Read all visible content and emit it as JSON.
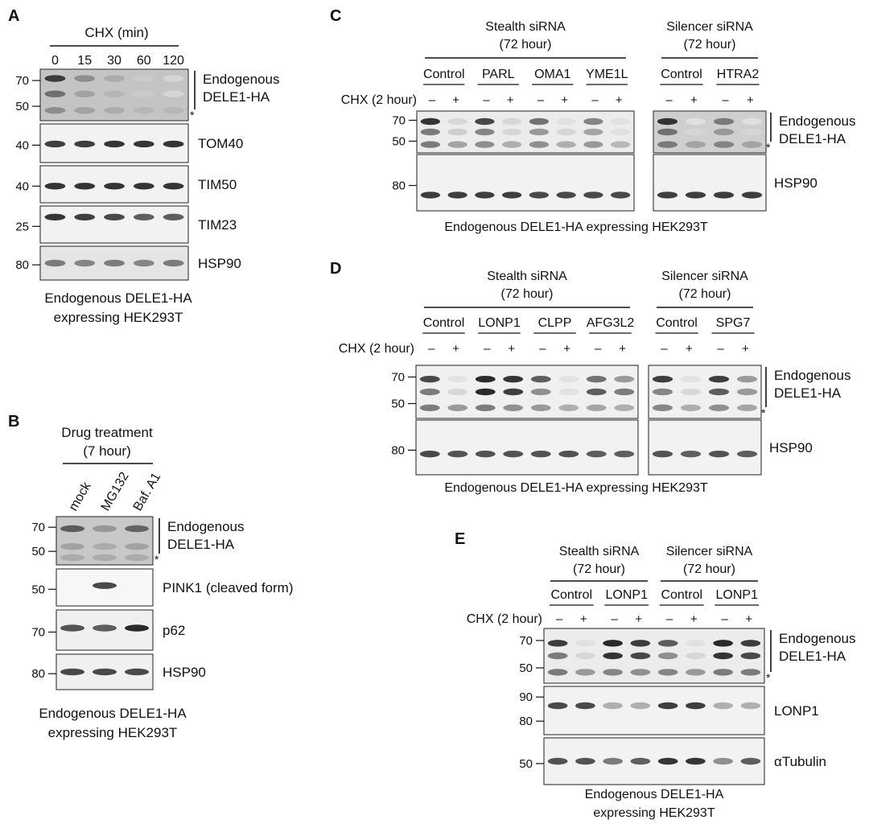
{
  "panels": [
    {
      "letter": "A",
      "treatment_header": "CHX (min)",
      "lane_labels": [
        "0",
        "15",
        "30",
        "60",
        "120"
      ],
      "blots": [
        {
          "mw": [
            "70",
            "50"
          ],
          "label": [
            "Endogenous",
            "DELE1-HA"
          ],
          "bracket": true,
          "asterisk": true,
          "bg": "#c4c4c4",
          "bands": [
            {
              "level": 0.18,
              "intensity": [
                0.85,
                0.45,
                0.3,
                0.15,
                0.1
              ]
            },
            {
              "level": 0.48,
              "intensity": [
                0.6,
                0.35,
                0.25,
                0.15,
                0.1
              ]
            },
            {
              "level": 0.8,
              "intensity": [
                0.45,
                0.35,
                0.3,
                0.25,
                0.25
              ]
            }
          ]
        },
        {
          "mw": [
            "40"
          ],
          "label": [
            "TOM40"
          ],
          "bracket": false,
          "asterisk": false,
          "bg": "#f2f2f2",
          "bands": [
            {
              "level": 0.52,
              "intensity": [
                0.85,
                0.85,
                0.9,
                0.9,
                0.9
              ]
            }
          ]
        },
        {
          "mw": [
            "40"
          ],
          "label": [
            "TIM50"
          ],
          "bracket": false,
          "asterisk": false,
          "bg": "#f2f2f2",
          "bands": [
            {
              "level": 0.55,
              "intensity": [
                0.9,
                0.9,
                0.9,
                0.9,
                0.9
              ]
            }
          ]
        },
        {
          "mw": [
            "25"
          ],
          "label": [
            "TIM23"
          ],
          "bracket": false,
          "asterisk": false,
          "bg": "#f2f2f2",
          "bands": [
            {
              "level": 0.3,
              "intensity": [
                0.9,
                0.85,
                0.8,
                0.7,
                0.7
              ]
            }
          ]
        },
        {
          "mw": [
            "80"
          ],
          "label": [
            "HSP90"
          ],
          "bracket": false,
          "asterisk": false,
          "bg": "#e5e5e5",
          "bands": [
            {
              "level": 0.5,
              "intensity": [
                0.55,
                0.5,
                0.55,
                0.5,
                0.55
              ]
            }
          ]
        }
      ],
      "caption": [
        "Endogenous DELE1-HA",
        "expressing HEK293T"
      ]
    },
    {
      "letter": "B",
      "treatment_header": [
        "Drug treatment",
        "(7 hour)"
      ],
      "lane_labels": [
        "mock",
        "MG132",
        "Baf. A1"
      ],
      "blots": [
        {
          "mw": [
            "70",
            "50"
          ],
          "label": [
            "Endogenous",
            "DELE1-HA"
          ],
          "bracket": true,
          "asterisk": true,
          "bg": "#c8c8c8",
          "bands": [
            {
              "level": 0.25,
              "intensity": [
                0.7,
                0.4,
                0.65
              ]
            },
            {
              "level": 0.62,
              "intensity": [
                0.35,
                0.3,
                0.35
              ]
            },
            {
              "level": 0.85,
              "intensity": [
                0.3,
                0.3,
                0.3
              ]
            }
          ]
        },
        {
          "mw": [
            "50"
          ],
          "label": [
            "PINK1 (cleaved form)"
          ],
          "bracket": false,
          "asterisk": false,
          "bg": "#f7f7f7",
          "bands": [
            {
              "level": 0.45,
              "intensity": [
                0.0,
                0.8,
                0.0
              ]
            }
          ]
        },
        {
          "mw": [
            "70"
          ],
          "label": [
            "p62"
          ],
          "bracket": false,
          "asterisk": false,
          "bg": "#f0f0f0",
          "bands": [
            {
              "level": 0.45,
              "intensity": [
                0.75,
                0.7,
                0.95
              ]
            }
          ]
        },
        {
          "mw": [
            "80"
          ],
          "label": [
            "HSP90"
          ],
          "bracket": false,
          "asterisk": false,
          "bg": "#f0f0f0",
          "bands": [
            {
              "level": 0.5,
              "intensity": [
                0.8,
                0.8,
                0.8
              ]
            }
          ]
        }
      ],
      "caption": [
        "Endogenous DELE1-HA",
        "expressing HEK293T"
      ]
    },
    {
      "letter": "C",
      "groups": [
        {
          "header": [
            "Stealth siRNA",
            "(72 hour)"
          ],
          "targets": [
            "Control",
            "PARL",
            "OMA1",
            "YME1L"
          ]
        },
        {
          "header": [
            "Silencer siRNA",
            "(72 hour)"
          ],
          "targets": [
            "Control",
            "HTRA2"
          ]
        }
      ],
      "chx_label": "CHX (2 hour)",
      "signs": [
        "–",
        "+"
      ],
      "blots": [
        {
          "mw": [
            "70",
            "50"
          ],
          "label": [
            "Endogenous",
            "DELE1-HA"
          ],
          "bracket": true,
          "asterisk": true,
          "bg": [
            "#ececec",
            "#cfcfcf"
          ],
          "bands": [
            {
              "level": 0.25,
              "intensity": [
                0.9,
                0.1,
                0.8,
                0.1,
                0.6,
                0.05,
                0.5,
                0.05,
                0.9,
                0.05,
                0.55,
                0.05
              ]
            },
            {
              "level": 0.5,
              "intensity": [
                0.55,
                0.15,
                0.5,
                0.1,
                0.4,
                0.1,
                0.35,
                0.05,
                0.6,
                0.1,
                0.4,
                0.1
              ]
            },
            {
              "level": 0.8,
              "intensity": [
                0.55,
                0.35,
                0.45,
                0.3,
                0.45,
                0.3,
                0.4,
                0.25,
                0.55,
                0.35,
                0.5,
                0.35
              ]
            }
          ]
        },
        {
          "mw": [
            "80"
          ],
          "label": [
            "HSP90"
          ],
          "bracket": false,
          "asterisk": false,
          "bg": [
            "#f2f2f2",
            "#f2f2f2"
          ],
          "bands": [
            {
              "level": 0.72,
              "intensity": [
                0.85,
                0.85,
                0.85,
                0.85,
                0.8,
                0.8,
                0.8,
                0.8,
                0.85,
                0.85,
                0.85,
                0.85
              ]
            }
          ]
        }
      ],
      "caption": "Endogenous DELE1-HA expressing HEK293T"
    },
    {
      "letter": "D",
      "groups": [
        {
          "header": [
            "Stealth siRNA",
            "(72 hour)"
          ],
          "targets": [
            "Control",
            "LONP1",
            "CLPP",
            "AFG3L2"
          ]
        },
        {
          "header": [
            "Silencer siRNA",
            "(72 hour)"
          ],
          "targets": [
            "Control",
            "SPG7"
          ]
        }
      ],
      "chx_label": "CHX (2 hour)",
      "signs": [
        "–",
        "+"
      ],
      "blots": [
        {
          "mw": [
            "70",
            "50"
          ],
          "label": [
            "Endogenous",
            "DELE1-HA"
          ],
          "bracket": true,
          "asterisk": true,
          "bg": [
            "#f0f0f0",
            "#f0f0f0"
          ],
          "bands": [
            {
              "level": 0.26,
              "intensity": [
                0.8,
                0.05,
                0.95,
                0.9,
                0.7,
                0.05,
                0.6,
                0.4,
                0.85,
                0.05,
                0.85,
                0.4
              ]
            },
            {
              "level": 0.5,
              "intensity": [
                0.55,
                0.1,
                0.95,
                0.85,
                0.45,
                0.05,
                0.7,
                0.55,
                0.5,
                0.1,
                0.7,
                0.4
              ]
            },
            {
              "level": 0.8,
              "intensity": [
                0.55,
                0.4,
                0.55,
                0.45,
                0.4,
                0.3,
                0.35,
                0.3,
                0.5,
                0.3,
                0.45,
                0.35
              ]
            }
          ]
        },
        {
          "mw": [
            "80"
          ],
          "label": [
            "HSP90"
          ],
          "bracket": false,
          "asterisk": false,
          "bg": [
            "#f2f2f2",
            "#f2f2f2"
          ],
          "bands": [
            {
              "level": 0.62,
              "intensity": [
                0.8,
                0.75,
                0.75,
                0.75,
                0.75,
                0.75,
                0.7,
                0.7,
                0.75,
                0.7,
                0.75,
                0.7
              ]
            }
          ]
        }
      ],
      "caption": "Endogenous DELE1-HA expressing HEK293T"
    },
    {
      "letter": "E",
      "groups": [
        {
          "header": [
            "Stealth siRNA",
            "(72 hour)"
          ],
          "targets": [
            "Control",
            "LONP1"
          ]
        },
        {
          "header": [
            "Silencer siRNA",
            "(72 hour)"
          ],
          "targets": [
            "Control",
            "LONP1"
          ]
        }
      ],
      "chx_label": "CHX (2 hour)",
      "signs": [
        "–",
        "+"
      ],
      "blots": [
        {
          "mw": [
            "70",
            "50"
          ],
          "label": [
            "Endogenous",
            "DELE1-HA"
          ],
          "bracket": true,
          "asterisk": true,
          "bg": "#ececec",
          "bands": [
            {
              "level": 0.27,
              "intensity": [
                0.85,
                0.05,
                0.95,
                0.85,
                0.7,
                0.05,
                0.95,
                0.85
              ]
            },
            {
              "level": 0.5,
              "intensity": [
                0.55,
                0.1,
                0.9,
                0.8,
                0.45,
                0.1,
                0.9,
                0.8
              ]
            },
            {
              "level": 0.8,
              "intensity": [
                0.55,
                0.4,
                0.5,
                0.45,
                0.5,
                0.4,
                0.55,
                0.55
              ]
            }
          ]
        },
        {
          "mw": [
            "90",
            "80"
          ],
          "label": [
            "LONP1"
          ],
          "bracket": false,
          "asterisk": false,
          "bg": "#f2f2f2",
          "bands": [
            {
              "level": 0.4,
              "intensity": [
                0.8,
                0.8,
                0.3,
                0.3,
                0.85,
                0.85,
                0.3,
                0.3
              ]
            }
          ]
        },
        {
          "mw": [
            "50"
          ],
          "label": [
            "αTubulin"
          ],
          "bracket": false,
          "asterisk": false,
          "bg": "#f2f2f2",
          "bands": [
            {
              "level": 0.5,
              "intensity": [
                0.75,
                0.75,
                0.55,
                0.7,
                0.9,
                0.9,
                0.45,
                0.7
              ]
            }
          ]
        }
      ],
      "caption": [
        "Endogenous DELE1-HA",
        "expressing HEK293T"
      ]
    }
  ]
}
